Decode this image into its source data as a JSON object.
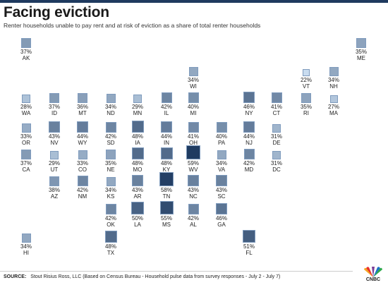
{
  "header": {
    "title": "Facing eviction",
    "subtitle": "Renter households unable to pay rent and at risk of eviction as a share of total renter households"
  },
  "chart_data": {
    "type": "tile-map",
    "title": "Facing eviction",
    "subtitle": "Renter households unable to pay rent and at risk of eviction as a share of total renter households",
    "unit": "%",
    "color_scale": {
      "low": "#c9dcef",
      "high": "#1f3b61",
      "min": 22,
      "max": 59
    },
    "tiles": [
      {
        "state": "AK",
        "value": 37,
        "row": 0,
        "col": 0
      },
      {
        "state": "ME",
        "value": 35,
        "row": 0,
        "col": 12
      },
      {
        "state": "WI",
        "value": 34,
        "row": 1,
        "col": 6
      },
      {
        "state": "VT",
        "value": 22,
        "row": 1,
        "col": 10
      },
      {
        "state": "NH",
        "value": 34,
        "row": 1,
        "col": 11
      },
      {
        "state": "WA",
        "value": 28,
        "row": 2,
        "col": 0
      },
      {
        "state": "ID",
        "value": 37,
        "row": 2,
        "col": 1
      },
      {
        "state": "MT",
        "value": 36,
        "row": 2,
        "col": 2
      },
      {
        "state": "ND",
        "value": 34,
        "row": 2,
        "col": 3
      },
      {
        "state": "MN",
        "value": 29,
        "row": 2,
        "col": 4
      },
      {
        "state": "IL",
        "value": 42,
        "row": 2,
        "col": 5
      },
      {
        "state": "MI",
        "value": 40,
        "row": 2,
        "col": 6
      },
      {
        "state": "NY",
        "value": 46,
        "row": 2,
        "col": 8
      },
      {
        "state": "CT",
        "value": 41,
        "row": 2,
        "col": 9
      },
      {
        "state": "RI",
        "value": 35,
        "row": 2,
        "col": 10
      },
      {
        "state": "MA",
        "value": 27,
        "row": 2,
        "col": 11
      },
      {
        "state": "OR",
        "value": 33,
        "row": 3,
        "col": 0
      },
      {
        "state": "NV",
        "value": 43,
        "row": 3,
        "col": 1
      },
      {
        "state": "WY",
        "value": 44,
        "row": 3,
        "col": 2
      },
      {
        "state": "SD",
        "value": 42,
        "row": 3,
        "col": 3
      },
      {
        "state": "IA",
        "value": 48,
        "row": 3,
        "col": 4
      },
      {
        "state": "IN",
        "value": 44,
        "row": 3,
        "col": 5
      },
      {
        "state": "OH",
        "value": 41,
        "row": 3,
        "col": 6
      },
      {
        "state": "PA",
        "value": 40,
        "row": 3,
        "col": 7
      },
      {
        "state": "NJ",
        "value": 44,
        "row": 3,
        "col": 8
      },
      {
        "state": "DE",
        "value": 31,
        "row": 3,
        "col": 9
      },
      {
        "state": "CA",
        "value": 37,
        "row": 4,
        "col": 0
      },
      {
        "state": "UT",
        "value": 29,
        "row": 4,
        "col": 1
      },
      {
        "state": "CO",
        "value": 33,
        "row": 4,
        "col": 2
      },
      {
        "state": "NE",
        "value": 35,
        "row": 4,
        "col": 3
      },
      {
        "state": "MO",
        "value": 48,
        "row": 4,
        "col": 4
      },
      {
        "state": "KY",
        "value": 48,
        "row": 4,
        "col": 5
      },
      {
        "state": "WV",
        "value": 59,
        "row": 4,
        "col": 6
      },
      {
        "state": "VA",
        "value": 34,
        "row": 4,
        "col": 7
      },
      {
        "state": "MD",
        "value": 42,
        "row": 4,
        "col": 8
      },
      {
        "state": "DC",
        "value": 31,
        "row": 4,
        "col": 9
      },
      {
        "state": "AZ",
        "value": 38,
        "row": 5,
        "col": 1
      },
      {
        "state": "NM",
        "value": 42,
        "row": 5,
        "col": 2
      },
      {
        "state": "KS",
        "value": 34,
        "row": 5,
        "col": 3
      },
      {
        "state": "AR",
        "value": 43,
        "row": 5,
        "col": 4
      },
      {
        "state": "TN",
        "value": 58,
        "row": 5,
        "col": 5
      },
      {
        "state": "NC",
        "value": 43,
        "row": 5,
        "col": 6
      },
      {
        "state": "SC",
        "value": 43,
        "row": 5,
        "col": 7
      },
      {
        "state": "OK",
        "value": 42,
        "row": 6,
        "col": 3
      },
      {
        "state": "LA",
        "value": 50,
        "row": 6,
        "col": 4
      },
      {
        "state": "MS",
        "value": 55,
        "row": 6,
        "col": 5
      },
      {
        "state": "AL",
        "value": 42,
        "row": 6,
        "col": 6
      },
      {
        "state": "GA",
        "value": 46,
        "row": 6,
        "col": 7
      },
      {
        "state": "HI",
        "value": 34,
        "row": 7,
        "col": 0
      },
      {
        "state": "TX",
        "value": 48,
        "row": 7,
        "col": 3
      },
      {
        "state": "FL",
        "value": 51,
        "row": 7,
        "col": 8
      }
    ]
  },
  "footer": {
    "source_label": "SOURCE:",
    "source_text": "Stout Risius Ross, LLC (Based on Census Bureau - Household pulse data from survey responses - July 2 - July 7)",
    "logo_text": "CNBC"
  }
}
